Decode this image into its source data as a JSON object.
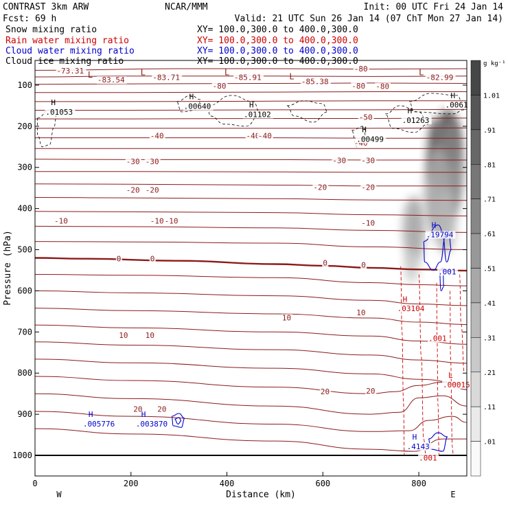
{
  "header": {
    "left_line1": "CONTRAST  3km ARW",
    "left_line2": "Fcst:   69 h",
    "center": "NCAR/MMM",
    "init": "Init: 00 UTC Fri 24 Jan 14",
    "valid": "Valid: 21 UTC Sun 26 Jan 14 (07 ChT Mon 27 Jan 14)"
  },
  "fields": [
    {
      "name": "Snow mixing ratio",
      "xy": "XY= 100.0,300.0 to 400.0,300.0",
      "color": "#000000"
    },
    {
      "name": "Rain water mixing ratio",
      "xy": "XY= 100.0,300.0 to 400.0,300.0",
      "color": "#cc0000"
    },
    {
      "name": "Cloud water mixing ratio",
      "xy": "XY= 100.0,300.0 to 400.0,300.0",
      "color": "#0000cc"
    },
    {
      "name": "Cloud ice mixing ratio",
      "xy": "XY= 100.0,300.0 to 400.0,300.0",
      "color": "#000000"
    }
  ],
  "colorbar": {
    "unit": "g kg⁻¹",
    "labels": [
      "1.01",
      ".91",
      ".81",
      ".71",
      ".61",
      ".51",
      ".41",
      ".31",
      ".21",
      ".11",
      ".01"
    ],
    "levels": [
      1.11,
      1.01,
      0.91,
      0.81,
      0.71,
      0.61,
      0.51,
      0.41,
      0.31,
      0.21,
      0.11,
      0.01
    ]
  },
  "chart_data": {
    "type": "contour",
    "xlabel": "Distance (km)",
    "ylabel": "Pressure (hPa)",
    "xlim": [
      0,
      900
    ],
    "ylim": [
      1050,
      40
    ],
    "x_ticks": [
      0,
      200,
      400,
      600,
      800
    ],
    "x_tick_labels": [
      "0",
      "200",
      "400",
      "600",
      "800"
    ],
    "y_ticks": [
      100,
      200,
      300,
      400,
      500,
      600,
      700,
      800,
      900,
      1000
    ],
    "y_tick_labels": [
      "100",
      "200",
      "300",
      "400",
      "500",
      "600",
      "700",
      "800",
      "900",
      "1000"
    ],
    "end_labels": {
      "west": "W",
      "east": "E"
    },
    "temperature_lines": [
      {
        "p": [
          [
            0,
            64
          ],
          [
            300,
            60
          ],
          [
            500,
            60
          ],
          [
            700,
            61
          ],
          [
            900,
            60
          ]
        ]
      },
      {
        "p": [
          [
            0,
            80
          ],
          [
            200,
            78
          ],
          [
            500,
            78
          ],
          [
            700,
            79
          ],
          [
            900,
            78
          ]
        ]
      },
      {
        "p": [
          [
            0,
            98
          ],
          [
            200,
            97
          ],
          [
            500,
            96
          ],
          [
            700,
            95
          ],
          [
            900,
            96
          ]
        ]
      },
      {
        "p": [
          [
            0,
            118
          ],
          [
            200,
            118
          ],
          [
            500,
            117
          ],
          [
            700,
            116
          ],
          [
            900,
            116
          ]
        ]
      },
      {
        "p": [
          [
            0,
            140
          ],
          [
            200,
            140
          ],
          [
            500,
            139
          ],
          [
            700,
            138
          ],
          [
            900,
            138
          ]
        ]
      },
      {
        "p": [
          [
            0,
            161
          ],
          [
            200,
            161
          ],
          [
            500,
            160
          ],
          [
            700,
            160
          ],
          [
            900,
            159
          ]
        ]
      },
      {
        "p": [
          [
            0,
            182
          ],
          [
            200,
            182
          ],
          [
            500,
            181
          ],
          [
            700,
            181
          ],
          [
            900,
            180
          ]
        ]
      },
      {
        "p": [
          [
            0,
            205
          ],
          [
            200,
            205
          ],
          [
            500,
            205
          ],
          [
            700,
            205
          ],
          [
            900,
            204
          ]
        ]
      },
      {
        "p": [
          [
            0,
            228
          ],
          [
            200,
            228
          ],
          [
            500,
            228
          ],
          [
            700,
            229
          ],
          [
            900,
            229
          ]
        ]
      },
      {
        "p": [
          [
            0,
            254
          ],
          [
            200,
            254
          ],
          [
            500,
            254
          ],
          [
            700,
            254
          ],
          [
            900,
            254
          ]
        ]
      },
      {
        "p": [
          [
            0,
            280
          ],
          [
            200,
            281
          ],
          [
            500,
            281
          ],
          [
            700,
            282
          ],
          [
            900,
            282
          ]
        ]
      },
      {
        "p": [
          [
            0,
            310
          ],
          [
            200,
            310
          ],
          [
            500,
            311
          ],
          [
            700,
            312
          ],
          [
            900,
            312
          ]
        ]
      },
      {
        "p": [
          [
            0,
            340
          ],
          [
            200,
            341
          ],
          [
            500,
            343
          ],
          [
            700,
            345
          ],
          [
            900,
            345
          ]
        ]
      },
      {
        "p": [
          [
            0,
            373
          ],
          [
            200,
            374
          ],
          [
            500,
            376
          ],
          [
            700,
            379
          ],
          [
            900,
            380
          ]
        ]
      },
      {
        "p": [
          [
            0,
            407
          ],
          [
            200,
            408
          ],
          [
            500,
            410
          ],
          [
            700,
            415
          ],
          [
            900,
            418
          ]
        ]
      },
      {
        "p": [
          [
            0,
            443
          ],
          [
            200,
            444
          ],
          [
            500,
            447
          ],
          [
            700,
            453
          ],
          [
            900,
            458
          ]
        ]
      },
      {
        "p": [
          [
            0,
            480
          ],
          [
            200,
            481
          ],
          [
            500,
            484
          ],
          [
            700,
            493
          ],
          [
            900,
            500
          ]
        ]
      },
      {
        "p": [
          [
            0,
            560
          ],
          [
            200,
            562
          ],
          [
            500,
            568
          ],
          [
            700,
            580
          ],
          [
            800,
            585
          ],
          [
            900,
            588
          ]
        ]
      },
      {
        "p": [
          [
            0,
            600
          ],
          [
            200,
            605
          ],
          [
            500,
            612
          ],
          [
            700,
            623
          ],
          [
            800,
            632
          ],
          [
            900,
            636
          ]
        ]
      },
      {
        "p": [
          [
            0,
            642
          ],
          [
            200,
            648
          ],
          [
            500,
            656
          ],
          [
            700,
            666
          ],
          [
            800,
            676
          ],
          [
            900,
            682
          ]
        ]
      },
      {
        "p": [
          [
            0,
            683
          ],
          [
            200,
            690
          ],
          [
            500,
            700
          ],
          [
            700,
            710
          ],
          [
            800,
            722
          ],
          [
            900,
            730
          ]
        ]
      },
      {
        "p": [
          [
            0,
            724
          ],
          [
            200,
            732
          ],
          [
            500,
            743
          ],
          [
            700,
            756
          ],
          [
            800,
            768
          ],
          [
            900,
            776
          ]
        ]
      },
      {
        "p": [
          [
            0,
            766
          ],
          [
            200,
            775
          ],
          [
            500,
            788
          ],
          [
            700,
            802
          ],
          [
            800,
            815
          ],
          [
            900,
            826
          ]
        ]
      },
      {
        "p": [
          [
            0,
            808
          ],
          [
            200,
            818
          ],
          [
            500,
            834
          ],
          [
            700,
            850
          ],
          [
            750,
            845
          ],
          [
            800,
            830
          ],
          [
            850,
            822
          ],
          [
            900,
            840
          ]
        ]
      },
      {
        "p": [
          [
            0,
            850
          ],
          [
            200,
            862
          ],
          [
            500,
            880
          ],
          [
            700,
            900
          ],
          [
            760,
            895
          ],
          [
            800,
            860
          ],
          [
            850,
            855
          ],
          [
            900,
            880
          ]
        ]
      },
      {
        "p": [
          [
            0,
            893
          ],
          [
            200,
            905
          ],
          [
            500,
            924
          ],
          [
            700,
            942
          ],
          [
            780,
            940
          ],
          [
            820,
            915
          ],
          [
            870,
            905
          ],
          [
            900,
            920
          ]
        ]
      },
      {
        "p": [
          [
            0,
            935
          ],
          [
            200,
            948
          ],
          [
            500,
            965
          ],
          [
            700,
            985
          ],
          [
            790,
            990
          ],
          [
            850,
            960
          ],
          [
            900,
            960
          ]
        ]
      }
    ],
    "freezing_line": {
      "label": "0",
      "p": [
        [
          0,
          520
        ],
        [
          100,
          522
        ],
        [
          300,
          527
        ],
        [
          500,
          535
        ],
        [
          600,
          539
        ],
        [
          700,
          544
        ],
        [
          800,
          548
        ],
        [
          900,
          551
        ]
      ]
    },
    "surface_line": {
      "p": [
        [
          0,
          1000
        ],
        [
          900,
          1000
        ]
      ]
    },
    "temperature_labels": [
      {
        "t": "-73.31",
        "x": 45,
        "p": 70
      },
      {
        "t": "-83.54",
        "x": 130,
        "p": 92
      },
      {
        "t": "-83.71",
        "x": 245,
        "p": 86
      },
      {
        "t": "-85.91",
        "x": 415,
        "p": 86
      },
      {
        "t": "-85.38",
        "x": 555,
        "p": 96
      },
      {
        "t": "-82.99",
        "x": 815,
        "p": 86
      },
      {
        "t": "-80",
        "x": 370,
        "p": 107
      },
      {
        "t": "-80",
        "x": 665,
        "p": 65
      },
      {
        "t": "-80",
        "x": 660,
        "p": 107
      },
      {
        "t": "-80",
        "x": 710,
        "p": 108
      },
      {
        "t": "-50",
        "x": 675,
        "p": 183
      },
      {
        "t": "-40",
        "x": 240,
        "p": 228
      },
      {
        "t": "-40",
        "x": 440,
        "p": 228
      },
      {
        "t": "-40",
        "x": 465,
        "p": 228
      },
      {
        "t": "-40",
        "x": 665,
        "p": 245
      },
      {
        "t": "-30",
        "x": 190,
        "p": 290
      },
      {
        "t": "-30",
        "x": 230,
        "p": 290
      },
      {
        "t": "-30",
        "x": 620,
        "p": 288
      },
      {
        "t": "-30",
        "x": 680,
        "p": 288
      },
      {
        "t": "-20",
        "x": 190,
        "p": 360
      },
      {
        "t": "-20",
        "x": 230,
        "p": 360
      },
      {
        "t": "-20",
        "x": 580,
        "p": 353
      },
      {
        "t": "-20",
        "x": 680,
        "p": 353
      },
      {
        "t": "-10",
        "x": 40,
        "p": 435
      },
      {
        "t": "-10",
        "x": 240,
        "p": 435
      },
      {
        "t": "-10",
        "x": 270,
        "p": 435
      },
      {
        "t": "-10",
        "x": 680,
        "p": 440
      },
      {
        "t": "0",
        "x": 170,
        "p": 527
      },
      {
        "t": "0",
        "x": 240,
        "p": 527
      },
      {
        "t": "0",
        "x": 600,
        "p": 537
      },
      {
        "t": "0",
        "x": 680,
        "p": 542
      },
      {
        "t": "10",
        "x": 175,
        "p": 713
      },
      {
        "t": "10",
        "x": 230,
        "p": 713
      },
      {
        "t": "10",
        "x": 515,
        "p": 670
      },
      {
        "t": "10",
        "x": 670,
        "p": 658
      },
      {
        "t": "20",
        "x": 205,
        "p": 892
      },
      {
        "t": "20",
        "x": 255,
        "p": 892
      },
      {
        "t": "20",
        "x": 595,
        "p": 850
      },
      {
        "t": "20",
        "x": 690,
        "p": 848
      }
    ],
    "temp_markers": [
      {
        "t": "L",
        "x": 110,
        "p": 82
      },
      {
        "t": "L",
        "x": 220,
        "p": 76
      },
      {
        "t": "L",
        "x": 395,
        "p": 76
      },
      {
        "t": "L",
        "x": 530,
        "p": 86
      },
      {
        "t": "L",
        "x": 800,
        "p": 76
      }
    ],
    "cloud_ice_markers": [
      {
        "h": "H",
        "v": ".01053",
        "x": 22,
        "p": 162
      },
      {
        "h": "H",
        "v": ".00640",
        "x": 310,
        "p": 148
      },
      {
        "h": "H",
        "v": ".01102",
        "x": 435,
        "p": 168
      },
      {
        "h": "H",
        "v": ".00499",
        "x": 670,
        "p": 228
      },
      {
        "h": "H",
        "v": ".01263",
        "x": 765,
        "p": 182
      },
      {
        "h": "H",
        "v": ".0061",
        "x": 855,
        "p": 145
      }
    ],
    "cloud_water_markers": [
      {
        "h": "H",
        "v": ".005776",
        "x": 100,
        "p": 920
      },
      {
        "h": "H",
        "v": ".003870",
        "x": 210,
        "p": 920
      },
      {
        "h": "H",
        "v": ".19794",
        "x": 815,
        "p": 460
      },
      {
        "h": "",
        "v": ".001",
        "x": 840,
        "p": 550
      },
      {
        "h": "H",
        "v": ".4143",
        "x": 775,
        "p": 975
      }
    ],
    "rain_water_markers": [
      {
        "h": "H",
        "v": ".03104",
        "x": 755,
        "p": 640
      },
      {
        "h": "",
        "v": ".001",
        "x": 820,
        "p": 712
      },
      {
        "h": "L",
        "v": ".00015",
        "x": 850,
        "p": 825
      },
      {
        "h": "",
        "v": ".001",
        "x": 800,
        "p": 1003
      }
    ],
    "snow_shading": [
      {
        "x": 860,
        "p": 230,
        "rx": 16,
        "rp": 70,
        "value": 1.01
      },
      {
        "x": 835,
        "p": 260,
        "rx": 12,
        "rp": 80,
        "value": 0.81
      },
      {
        "x": 865,
        "p": 300,
        "rx": 20,
        "rp": 120,
        "value": 0.61
      },
      {
        "x": 840,
        "p": 360,
        "rx": 20,
        "rp": 110,
        "value": 0.41
      },
      {
        "x": 855,
        "p": 430,
        "rx": 16,
        "rp": 80,
        "value": 0.31
      },
      {
        "x": 790,
        "p": 450,
        "rx": 16,
        "rp": 80,
        "value": 0.41
      },
      {
        "x": 785,
        "p": 540,
        "rx": 10,
        "rp": 40,
        "value": 0.21
      }
    ]
  }
}
